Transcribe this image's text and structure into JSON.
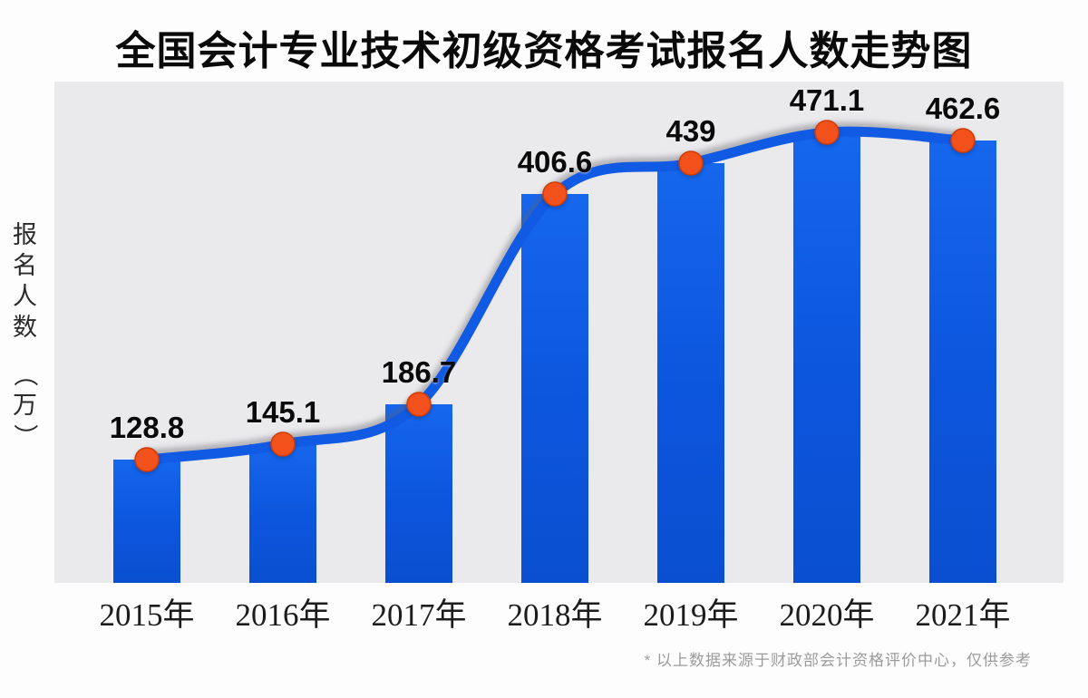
{
  "chart_data": {
    "type": "bar",
    "overlay": "line",
    "title": "全国会计专业技术初级资格考试报名人数走势图",
    "ylabel": "报名人数（万）",
    "xlabel": "",
    "categories": [
      "2015年",
      "2016年",
      "2017年",
      "2018年",
      "2019年",
      "2020年",
      "2021年"
    ],
    "series": [
      {
        "name": "报名人数",
        "values": [
          128.8,
          145.1,
          186.7,
          406.6,
          439,
          471.1,
          462.6
        ]
      }
    ],
    "data_labels": [
      "128.8",
      "145.1",
      "186.7",
      "406.6",
      "439",
      "471.1",
      "462.6"
    ],
    "ylim": [
      0,
      524
    ],
    "grid": false,
    "legend_position": "none",
    "footnote": "* 以上数据来源于财政部会计资格评价中心，仅供参考",
    "colors": {
      "bar_top": "#1666ee",
      "bar_bottom": "#0a4fd0",
      "line": "#115ae3",
      "marker": "#f3511b",
      "marker_stroke": "#cf3c06",
      "panel_bg": "#eae9eb",
      "title": "#0a0a0a",
      "data_label": "#0a0a0a",
      "axis_label": "#1c1c1c",
      "footnote": "#9b9b9b"
    }
  }
}
